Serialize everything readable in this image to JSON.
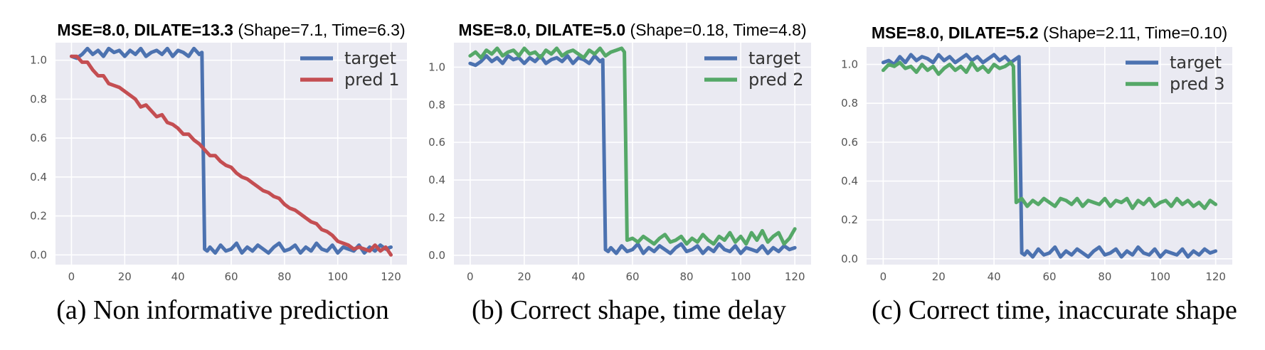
{
  "colors": {
    "plot_background": "#eaeaf2",
    "grid": "#ffffff",
    "target": "#4c72b0",
    "pred_red": "#c44e52",
    "pred_green": "#55a868"
  },
  "chart_data": [
    {
      "type": "line",
      "title_bold": "MSE=8.0, DILATE=13.3",
      "title_rest": " (Shape=7.1, Time=6.3)",
      "caption": "(a) Non informative prediction",
      "xlim": [
        -6,
        126
      ],
      "ylim": [
        -0.05,
        1.09
      ],
      "xticks": [
        0,
        20,
        40,
        60,
        80,
        100,
        120
      ],
      "yticks": [
        0.0,
        0.2,
        0.4,
        0.6,
        0.8,
        1.0
      ],
      "grid": true,
      "legend_position": "top-right",
      "series": [
        {
          "name": "target",
          "color": "#4c72b0",
          "x": [
            0,
            2,
            4,
            6,
            8,
            10,
            12,
            14,
            16,
            18,
            20,
            22,
            24,
            26,
            28,
            30,
            32,
            34,
            36,
            38,
            40,
            42,
            44,
            46,
            48,
            49,
            50,
            51,
            52,
            54,
            56,
            58,
            60,
            62,
            64,
            66,
            68,
            70,
            72,
            74,
            76,
            78,
            80,
            82,
            84,
            86,
            88,
            90,
            92,
            94,
            96,
            98,
            100,
            102,
            104,
            106,
            108,
            110,
            112,
            114,
            116,
            118,
            120
          ],
          "y": [
            1.02,
            1.01,
            1.03,
            1.06,
            1.03,
            1.05,
            1.02,
            1.06,
            1.04,
            1.05,
            1.02,
            1.05,
            1.03,
            1.06,
            1.02,
            1.04,
            1.05,
            1.03,
            1.06,
            1.02,
            1.05,
            1.04,
            1.02,
            1.06,
            1.03,
            1.04,
            0.03,
            0.02,
            0.04,
            0.01,
            0.05,
            0.02,
            0.03,
            0.06,
            0.01,
            0.04,
            0.02,
            0.05,
            0.03,
            0.01,
            0.04,
            0.06,
            0.02,
            0.03,
            0.05,
            0.01,
            0.04,
            0.02,
            0.06,
            0.03,
            0.02,
            0.05,
            0.01,
            0.04,
            0.03,
            0.02,
            0.05,
            0.01,
            0.04,
            0.02,
            0.05,
            0.03,
            0.04
          ]
        },
        {
          "name": "pred 1",
          "color": "#c44e52",
          "x": [
            0,
            2,
            4,
            6,
            8,
            10,
            12,
            14,
            16,
            18,
            20,
            22,
            24,
            26,
            28,
            30,
            32,
            34,
            36,
            38,
            40,
            42,
            44,
            46,
            48,
            50,
            52,
            54,
            56,
            58,
            60,
            62,
            64,
            66,
            68,
            70,
            72,
            74,
            76,
            78,
            80,
            82,
            84,
            86,
            88,
            90,
            92,
            94,
            96,
            98,
            100,
            102,
            104,
            106,
            108,
            110,
            112,
            114,
            116,
            118,
            120
          ],
          "y": [
            1.02,
            1.02,
            0.99,
            0.99,
            0.95,
            0.92,
            0.92,
            0.88,
            0.87,
            0.86,
            0.84,
            0.82,
            0.8,
            0.76,
            0.77,
            0.74,
            0.71,
            0.72,
            0.68,
            0.67,
            0.65,
            0.62,
            0.62,
            0.59,
            0.57,
            0.54,
            0.51,
            0.51,
            0.48,
            0.46,
            0.45,
            0.42,
            0.4,
            0.39,
            0.37,
            0.35,
            0.33,
            0.32,
            0.3,
            0.29,
            0.26,
            0.24,
            0.23,
            0.21,
            0.19,
            0.17,
            0.16,
            0.13,
            0.12,
            0.1,
            0.07,
            0.06,
            0.05,
            0.03,
            0.04,
            0.03,
            0.02,
            0.05,
            0.02,
            0.04,
            0.0
          ]
        }
      ]
    },
    {
      "type": "line",
      "title_bold": "MSE=8.0, DILATE=5.0",
      "title_rest": " (Shape=0.18, Time=4.8)",
      "caption": "(b) Correct shape, time delay",
      "xlim": [
        -6,
        126
      ],
      "ylim": [
        -0.05,
        1.13
      ],
      "xticks": [
        0,
        20,
        40,
        60,
        80,
        100,
        120
      ],
      "yticks": [
        0.0,
        0.2,
        0.4,
        0.6,
        0.8,
        1.0
      ],
      "grid": true,
      "legend_position": "top-right",
      "series": [
        {
          "name": "target",
          "color": "#4c72b0",
          "x": [
            0,
            2,
            4,
            6,
            8,
            10,
            12,
            14,
            16,
            18,
            20,
            22,
            24,
            26,
            28,
            30,
            32,
            34,
            36,
            38,
            40,
            42,
            44,
            46,
            48,
            49,
            50,
            51,
            52,
            54,
            56,
            58,
            60,
            62,
            64,
            66,
            68,
            70,
            72,
            74,
            76,
            78,
            80,
            82,
            84,
            86,
            88,
            90,
            92,
            94,
            96,
            98,
            100,
            102,
            104,
            106,
            108,
            110,
            112,
            114,
            116,
            118,
            120
          ],
          "y": [
            1.02,
            1.01,
            1.03,
            1.06,
            1.03,
            1.05,
            1.02,
            1.06,
            1.04,
            1.05,
            1.02,
            1.05,
            1.03,
            1.06,
            1.02,
            1.04,
            1.05,
            1.03,
            1.06,
            1.02,
            1.05,
            1.04,
            1.02,
            1.06,
            1.03,
            1.04,
            0.03,
            0.02,
            0.04,
            0.01,
            0.05,
            0.02,
            0.03,
            0.06,
            0.01,
            0.04,
            0.02,
            0.05,
            0.03,
            0.01,
            0.04,
            0.06,
            0.02,
            0.03,
            0.05,
            0.01,
            0.04,
            0.02,
            0.06,
            0.03,
            0.02,
            0.05,
            0.01,
            0.04,
            0.03,
            0.02,
            0.05,
            0.01,
            0.04,
            0.02,
            0.05,
            0.03,
            0.04
          ]
        },
        {
          "name": "pred 2",
          "color": "#55a868",
          "x": [
            0,
            2,
            4,
            6,
            8,
            10,
            12,
            14,
            16,
            18,
            20,
            22,
            24,
            26,
            28,
            30,
            32,
            34,
            36,
            38,
            40,
            42,
            44,
            46,
            48,
            50,
            52,
            54,
            56,
            57,
            58,
            60,
            62,
            64,
            66,
            68,
            70,
            72,
            74,
            76,
            78,
            80,
            82,
            84,
            86,
            88,
            90,
            92,
            94,
            96,
            98,
            100,
            102,
            104,
            106,
            108,
            110,
            112,
            114,
            116,
            118,
            120
          ],
          "y": [
            1.06,
            1.08,
            1.05,
            1.09,
            1.07,
            1.1,
            1.06,
            1.08,
            1.09,
            1.06,
            1.1,
            1.07,
            1.08,
            1.05,
            1.09,
            1.07,
            1.1,
            1.06,
            1.08,
            1.09,
            1.07,
            1.05,
            1.09,
            1.07,
            1.1,
            1.06,
            1.08,
            1.09,
            1.1,
            1.08,
            0.08,
            0.09,
            0.07,
            0.1,
            0.08,
            0.06,
            0.09,
            0.11,
            0.07,
            0.08,
            0.1,
            0.06,
            0.09,
            0.07,
            0.11,
            0.08,
            0.06,
            0.1,
            0.08,
            0.12,
            0.07,
            0.1,
            0.06,
            0.12,
            0.08,
            0.13,
            0.07,
            0.1,
            0.12,
            0.06,
            0.09,
            0.14
          ]
        }
      ]
    },
    {
      "type": "line",
      "title_bold": "MSE=8.0, DILATE=5.2",
      "title_rest": " (Shape=2.11, Time=0.10)",
      "caption": "(c) Correct time, inaccurate shape",
      "xlim": [
        -6,
        126
      ],
      "ylim": [
        -0.03,
        1.09
      ],
      "xticks": [
        0,
        20,
        40,
        60,
        80,
        100,
        120
      ],
      "yticks": [
        0.0,
        0.2,
        0.4,
        0.6,
        0.8,
        1.0
      ],
      "grid": true,
      "legend_position": "top-right",
      "series": [
        {
          "name": "target",
          "color": "#4c72b0",
          "x": [
            0,
            2,
            4,
            6,
            8,
            10,
            12,
            14,
            16,
            18,
            20,
            22,
            24,
            26,
            28,
            30,
            32,
            34,
            36,
            38,
            40,
            42,
            44,
            46,
            48,
            49,
            50,
            51,
            52,
            54,
            56,
            58,
            60,
            62,
            64,
            66,
            68,
            70,
            72,
            74,
            76,
            78,
            80,
            82,
            84,
            86,
            88,
            90,
            92,
            94,
            96,
            98,
            100,
            102,
            104,
            106,
            108,
            110,
            112,
            114,
            116,
            118,
            120
          ],
          "y": [
            1.01,
            1.02,
            1.0,
            1.04,
            1.01,
            1.05,
            1.02,
            1.04,
            1.03,
            1.01,
            1.05,
            1.02,
            1.04,
            1.01,
            1.03,
            1.05,
            1.02,
            1.04,
            1.01,
            1.03,
            1.05,
            1.02,
            1.04,
            1.01,
            1.03,
            1.04,
            0.03,
            0.02,
            0.04,
            0.01,
            0.05,
            0.02,
            0.03,
            0.06,
            0.01,
            0.04,
            0.02,
            0.05,
            0.03,
            0.01,
            0.04,
            0.06,
            0.02,
            0.03,
            0.05,
            0.01,
            0.04,
            0.02,
            0.06,
            0.03,
            0.02,
            0.05,
            0.01,
            0.04,
            0.03,
            0.02,
            0.05,
            0.01,
            0.04,
            0.02,
            0.05,
            0.03,
            0.04
          ]
        },
        {
          "name": "pred 3",
          "color": "#55a868",
          "x": [
            0,
            2,
            4,
            6,
            8,
            10,
            12,
            14,
            16,
            18,
            20,
            22,
            24,
            26,
            28,
            30,
            32,
            34,
            36,
            38,
            40,
            42,
            44,
            46,
            47,
            48,
            50,
            52,
            54,
            56,
            58,
            60,
            62,
            64,
            66,
            68,
            70,
            72,
            74,
            76,
            78,
            80,
            82,
            84,
            86,
            88,
            90,
            92,
            94,
            96,
            98,
            100,
            102,
            104,
            106,
            108,
            110,
            112,
            114,
            116,
            118,
            120
          ],
          "y": [
            0.97,
            1.0,
            0.99,
            1.01,
            0.98,
            0.99,
            0.96,
            1.0,
            0.97,
            0.99,
            0.95,
            0.98,
            1.0,
            0.97,
            0.99,
            0.96,
            1.01,
            0.97,
            0.99,
            0.96,
            1.0,
            0.98,
            0.99,
            1.01,
            0.99,
            0.29,
            0.31,
            0.27,
            0.3,
            0.28,
            0.31,
            0.29,
            0.27,
            0.31,
            0.3,
            0.28,
            0.31,
            0.27,
            0.3,
            0.29,
            0.28,
            0.31,
            0.27,
            0.3,
            0.29,
            0.31,
            0.26,
            0.3,
            0.28,
            0.31,
            0.27,
            0.29,
            0.3,
            0.27,
            0.31,
            0.28,
            0.3,
            0.27,
            0.29,
            0.26,
            0.3,
            0.28
          ]
        }
      ]
    }
  ]
}
